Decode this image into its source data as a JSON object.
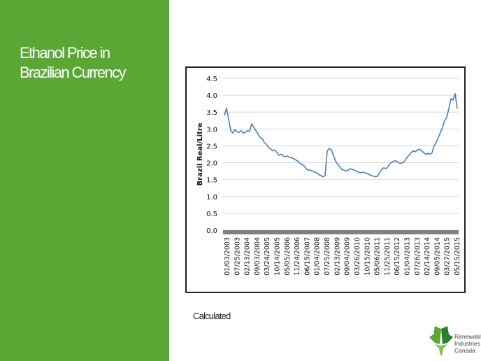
{
  "slide": {
    "title_line1": "Ethanol Price in",
    "title_line2": "Brazilian Currency",
    "caption": "Calculated"
  },
  "logo": {
    "icon": "maple-leaf-icon",
    "line1": "Renewable",
    "line2": "Industries",
    "line3": "Canada"
  },
  "colors": {
    "sidebar": "#5aa736",
    "series": "#4a7ebb",
    "x_axis_band": "#808080",
    "logo_green": "#5aa736",
    "logo_dark_green": "#2e7d32"
  },
  "chart_data": {
    "type": "line",
    "title": "",
    "xlabel": "",
    "ylabel": "Brazil Real/Litre",
    "ylim": [
      0,
      4.5
    ],
    "yticks": [
      0.0,
      0.5,
      1.0,
      1.5,
      2.0,
      2.5,
      3.0,
      3.5,
      4.0,
      4.5
    ],
    "ytick_labels": [
      "0.0",
      "0.5",
      "1.0",
      "1.5",
      "2.0",
      "2.5",
      "3.0",
      "3.5",
      "4.0",
      "4.5"
    ],
    "xtick_labels": [
      "01/03/2003",
      "07/25/2003",
      "02/13/2004",
      "09/03/2004",
      "03/24/2005",
      "10/14/2005",
      "05/05/2006",
      "11/24/2006",
      "06/15/2007",
      "01/04/2008",
      "07/25/2008",
      "02/13/2009",
      "09/04/2009",
      "03/26/2010",
      "10/15/2010",
      "05/06/2011",
      "11/25/2011",
      "06/15/2012",
      "01/04/2013",
      "07/26/2013",
      "02/14/2014",
      "09/05/2014",
      "03/27/2015",
      "05/15/2015"
    ],
    "grid": true,
    "legend": "none",
    "series": [
      {
        "x": [
          "2003-01-03",
          "2003-02-14",
          "2003-03-28",
          "2003-05-09",
          "2003-06-20",
          "2003-08-01",
          "2003-09-12",
          "2003-10-24",
          "2003-12-05",
          "2004-01-16",
          "2004-02-27",
          "2004-04-09",
          "2004-05-21",
          "2004-07-02",
          "2004-08-13",
          "2004-09-24",
          "2004-11-05",
          "2004-12-17",
          "2005-01-28",
          "2005-03-11",
          "2005-04-22",
          "2005-06-03",
          "2005-07-15",
          "2005-08-26",
          "2005-10-07",
          "2005-11-18",
          "2005-12-30",
          "2006-02-10",
          "2006-03-24",
          "2006-05-05",
          "2006-06-16",
          "2006-07-28",
          "2006-09-08",
          "2006-10-20",
          "2006-12-01",
          "2007-01-12",
          "2007-02-23",
          "2007-04-06",
          "2007-05-18",
          "2007-06-29",
          "2007-08-10",
          "2007-09-21",
          "2007-11-02",
          "2007-12-14",
          "2008-01-25",
          "2008-03-07",
          "2008-04-18",
          "2008-05-30",
          "2008-07-11",
          "2008-08-22",
          "2008-10-03",
          "2008-11-14",
          "2008-12-26",
          "2009-02-06",
          "2009-03-20",
          "2009-05-01",
          "2009-06-12",
          "2009-07-24",
          "2009-09-04",
          "2009-10-16",
          "2009-11-27",
          "2010-01-08",
          "2010-02-19",
          "2010-04-02",
          "2010-05-14",
          "2010-06-25",
          "2010-08-06",
          "2010-09-17",
          "2010-10-29",
          "2010-12-10",
          "2011-01-21",
          "2011-03-04",
          "2011-04-15",
          "2011-05-27",
          "2011-07-08",
          "2011-08-19",
          "2011-09-30",
          "2011-11-11",
          "2011-12-23",
          "2012-02-03",
          "2012-03-16",
          "2012-04-27",
          "2012-06-08",
          "2012-07-20",
          "2012-08-31",
          "2012-10-12",
          "2012-11-23",
          "2013-01-04",
          "2013-02-15",
          "2013-03-29",
          "2013-05-10",
          "2013-06-21",
          "2013-08-02",
          "2013-09-13",
          "2013-10-25",
          "2013-12-06",
          "2014-01-17",
          "2014-02-28",
          "2014-04-11",
          "2014-05-23",
          "2014-07-04",
          "2014-08-15",
          "2014-09-26",
          "2014-11-07",
          "2014-12-19",
          "2015-01-30",
          "2015-03-13",
          "2015-04-24",
          "2015-06-05",
          "2015-07-17",
          "2015-08-28",
          "2015-10-09"
        ],
        "values": [
          3.4,
          3.62,
          3.3,
          2.95,
          2.88,
          2.98,
          2.92,
          2.9,
          2.95,
          2.88,
          2.9,
          2.95,
          2.93,
          3.15,
          3.05,
          2.95,
          2.85,
          2.75,
          2.72,
          2.6,
          2.55,
          2.45,
          2.42,
          2.35,
          2.38,
          2.3,
          2.22,
          2.25,
          2.2,
          2.18,
          2.2,
          2.15,
          2.15,
          2.12,
          2.08,
          2.05,
          1.98,
          1.95,
          1.9,
          1.82,
          1.78,
          1.78,
          1.75,
          1.72,
          1.7,
          1.65,
          1.62,
          1.58,
          1.62,
          2.35,
          2.42,
          2.38,
          2.22,
          2.05,
          1.95,
          1.88,
          1.8,
          1.78,
          1.75,
          1.78,
          1.82,
          1.8,
          1.78,
          1.75,
          1.72,
          1.7,
          1.72,
          1.7,
          1.68,
          1.65,
          1.62,
          1.6,
          1.58,
          1.6,
          1.7,
          1.8,
          1.85,
          1.82,
          1.88,
          1.98,
          2.02,
          2.05,
          2.05,
          2.0,
          1.98,
          2.0,
          2.05,
          2.15,
          2.22,
          2.3,
          2.35,
          2.32,
          2.38,
          2.4,
          2.35,
          2.3,
          2.25,
          2.28,
          2.25,
          2.3,
          2.5,
          2.6,
          2.75,
          2.9,
          3.05,
          3.25,
          3.35,
          3.6,
          3.9,
          3.85,
          4.05,
          3.6
        ]
      }
    ]
  }
}
